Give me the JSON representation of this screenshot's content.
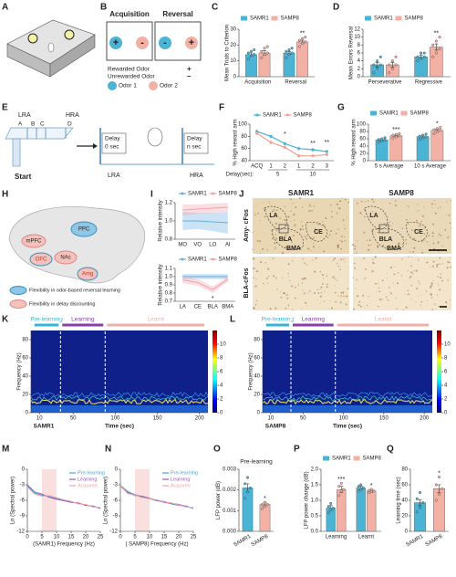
{
  "panel_labels": [
    "A",
    "B",
    "C",
    "D",
    "E",
    "F",
    "G",
    "H",
    "I",
    "J",
    "K",
    "L",
    "M",
    "N",
    "O",
    "P",
    "Q"
  ],
  "panel_b": {
    "headers": [
      "Acquisition",
      "Reversal"
    ],
    "signs": [
      "+",
      "-",
      "-",
      "+"
    ],
    "legend": [
      "Rewarded Odor",
      "Unrewarded Odor"
    ],
    "legend_signs": [
      "+",
      "–"
    ],
    "odors": [
      "Odor 1",
      "Odor 2"
    ]
  },
  "panel_e": {
    "arms": [
      "LRA",
      "HRA"
    ],
    "points": [
      "A",
      "B",
      "C",
      "D"
    ],
    "start": "Start",
    "delays": [
      {
        "title": "Delay",
        "time": "0 sec",
        "arm": "LRA"
      },
      {
        "title": "Delay",
        "time": "n sec",
        "arm": "HRA"
      }
    ]
  },
  "panel_h": {
    "regions": [
      "PPC",
      "mPFC",
      "OFC",
      "NAc",
      "Amg"
    ],
    "legend": [
      "Flexibility in odor-based reversal learning",
      "Flexibility in delay discounting"
    ]
  },
  "panel_j": {
    "columns": [
      "SAMR1",
      "SAMP8"
    ],
    "rows": [
      "Amy- cFos",
      "BLA-cFos"
    ],
    "regions": [
      "LA",
      "BLA",
      "CE",
      "BMA"
    ]
  },
  "chart_data": [
    {
      "type": "bar",
      "ylabel": "Mean Trials to Criterion",
      "categories": [
        "Acquisition",
        "Reversal"
      ],
      "ylim": [
        0,
        30
      ],
      "yticks": [
        0,
        10,
        20,
        30
      ],
      "series": [
        {
          "name": "SAMR1",
          "color": "#4bb3d3",
          "values": [
            14,
            15
          ],
          "errors": [
            1,
            1
          ],
          "points": [
            [
              11,
              13,
              14,
              15,
              16,
              17
            ],
            [
              12,
              14,
              15,
              16,
              17,
              18
            ]
          ]
        },
        {
          "name": "SAMP8",
          "color": "#f2b1a4",
          "values": [
            15,
            22
          ],
          "errors": [
            1.5,
            1
          ],
          "points": [
            [
              12,
              14,
              15,
              16,
              18,
              19
            ],
            [
              19,
              21,
              22,
              23,
              24,
              25
            ]
          ],
          "sig": [
            null,
            "**"
          ]
        }
      ]
    },
    {
      "type": "bar",
      "ylabel": "Mean Errors Reversal",
      "categories": [
        "Perseverative",
        "Regressive"
      ],
      "ylim": [
        0,
        12
      ],
      "yticks": [
        0,
        2,
        4,
        6,
        8,
        10,
        12
      ],
      "series": [
        {
          "name": "SAMR1",
          "color": "#4bb3d3",
          "values": [
            3,
            5
          ],
          "errors": [
            0.6,
            0.5
          ],
          "points": [
            [
              1,
              2,
              3,
              3,
              4,
              5
            ],
            [
              4,
              4.5,
              5,
              5,
              6,
              6
            ]
          ]
        },
        {
          "name": "SAMP8",
          "color": "#f2b1a4",
          "values": [
            3,
            7.5
          ],
          "errors": [
            0.6,
            0.8
          ],
          "points": [
            [
              1,
              2,
              3,
              3,
              4,
              5
            ],
            [
              5,
              6,
              7,
              8,
              9,
              10
            ]
          ],
          "sig": [
            null,
            "**"
          ]
        }
      ]
    },
    {
      "type": "line",
      "ylabel": "% High reward arm",
      "xlabel": "Delay(sec):",
      "categories": [
        "ACQ",
        "1",
        "2",
        "1",
        "2",
        "3"
      ],
      "groups": [
        "5",
        "10"
      ],
      "ylim": [
        40,
        100
      ],
      "yticks": [
        40,
        60,
        80,
        100
      ],
      "series": [
        {
          "name": "SAMR1",
          "color": "#4bb3d3",
          "values": [
            88,
            80,
            68,
            60,
            58,
            55
          ],
          "errors": [
            3,
            3,
            3,
            3,
            3,
            2
          ]
        },
        {
          "name": "SAMP8",
          "color": "#f2a093",
          "values": [
            85,
            70,
            62,
            48,
            48,
            50
          ],
          "errors": [
            3,
            3,
            3,
            3,
            2,
            2
          ],
          "sig": [
            null,
            null,
            "*",
            null,
            "**",
            "**"
          ]
        }
      ]
    },
    {
      "type": "bar",
      "ylabel": "% High reward arm",
      "categories": [
        "5 s Average",
        "10 s Average"
      ],
      "ylim": [
        0,
        100
      ],
      "yticks": [
        0,
        20,
        40,
        60,
        80,
        100
      ],
      "series": [
        {
          "name": "SAMR1",
          "color": "#4bb3d3",
          "values": [
            57,
            66
          ],
          "errors": [
            3,
            3
          ],
          "points": [
            [
              50,
              54,
              57,
              58,
              60,
              63
            ],
            [
              58,
              62,
              65,
              67,
              70,
              73
            ]
          ]
        },
        {
          "name": "SAMP8",
          "color": "#f2b1a4",
          "values": [
            68,
            83
          ],
          "errors": [
            2,
            3
          ],
          "points": [
            [
              62,
              65,
              68,
              70,
              72,
              74
            ],
            [
              74,
              79,
              83,
              85,
              88,
              91
            ]
          ],
          "sig": [
            "***",
            "*"
          ]
        }
      ]
    },
    {
      "type": "band",
      "ylabel": "Relative intensity",
      "categories": [
        "MO",
        "VO",
        "LO",
        "AI"
      ],
      "ylim": [
        0.8,
        1.2
      ],
      "yticks": [
        0.8,
        {
          "value": 1,
          "label": "1.0"
        },
        1.2
      ],
      "series": [
        {
          "name": "SAMR1",
          "color": "#6aaee0",
          "values": [
            1.0,
            1.0,
            0.99,
            0.98
          ],
          "errors": [
            0.1,
            0.09,
            0.1,
            0.12
          ]
        },
        {
          "name": "SAMP8",
          "color": "#f2a0a8",
          "values": [
            1.12,
            1.13,
            1.14,
            1.15
          ],
          "errors": [
            0.06,
            0.05,
            0.05,
            0.05
          ]
        }
      ]
    },
    {
      "type": "band",
      "ylabel": "Relative intensity",
      "categories": [
        "LA",
        "CE",
        "BLA",
        "BMA"
      ],
      "ylim": [
        0.7,
        1.1
      ],
      "yticks": [
        0.7,
        0.8,
        0.9,
        {
          "value": 1,
          "label": "1.0"
        },
        1.1
      ],
      "series": [
        {
          "name": "SAMR1",
          "color": "#6aaee0",
          "values": [
            1.0,
            1.0,
            1.0,
            1.0
          ],
          "errors": [
            0.03,
            0.03,
            0.03,
            0.03
          ]
        },
        {
          "name": "SAMP8",
          "color": "#f2a0a8",
          "values": [
            0.96,
            0.93,
            0.84,
            0.97
          ],
          "errors": [
            0.04,
            0.04,
            0.04,
            0.03
          ],
          "sig": [
            null,
            null,
            "*",
            null
          ]
        }
      ]
    },
    {
      "type": "spectrogram",
      "ylabel": "Frequency (Hz)",
      "xlabel": "Time (sec)",
      "subject": "SAMR1",
      "xlim": [
        0,
        210
      ],
      "xticks": [
        10,
        50,
        100,
        150,
        200
      ],
      "ylim": [
        0,
        90
      ],
      "yticks": [
        0,
        20,
        40,
        60,
        80
      ],
      "clim": [
        0,
        12
      ],
      "cticks": [
        0,
        2,
        4,
        6,
        8,
        10
      ],
      "phases": [
        {
          "name": "Pre-learning",
          "color": "#35b6d8",
          "span": [
            2,
            35
          ]
        },
        {
          "name": "Learning",
          "color": "#8a3fa8",
          "span": [
            35,
            88
          ]
        },
        {
          "name": "Learnt",
          "color": "#f0b0a6",
          "span": [
            88,
            208
          ]
        }
      ]
    },
    {
      "type": "spectrogram",
      "ylabel": "Frequency (Hz)",
      "xlabel": "Time (sec)",
      "subject": "SAMP8",
      "xlim": [
        0,
        210
      ],
      "xticks": [
        10,
        50,
        100,
        150,
        200
      ],
      "ylim": [
        0,
        90
      ],
      "yticks": [
        0,
        20,
        40,
        60,
        80
      ],
      "clim": [
        0,
        12
      ],
      "cticks": [
        0,
        2,
        4,
        6,
        8,
        10
      ],
      "phases": [
        {
          "name": "Pre-learning",
          "color": "#35b6d8",
          "span": [
            2,
            35
          ]
        },
        {
          "name": "Learning",
          "color": "#8a3fa8",
          "span": [
            35,
            90
          ]
        },
        {
          "name": "Learnt",
          "color": "#f0b0a6",
          "span": [
            90,
            208
          ]
        }
      ]
    },
    {
      "type": "spectrum",
      "ylabel": "Ln (Spectral power)",
      "xlabel": "(SAMR1) Frequency (Hz)",
      "xlim": [
        0,
        25
      ],
      "xticks": [
        0,
        5,
        10,
        15,
        20,
        25
      ],
      "ylim": [
        -12,
        0
      ],
      "yticks": [
        -12,
        -9,
        -6,
        -3,
        0
      ],
      "highlight": [
        5,
        10
      ],
      "x": [
        0,
        2.5,
        5,
        7.5,
        10,
        12.5,
        15,
        17.5,
        20,
        22.5,
        25
      ],
      "series": [
        {
          "name": "Pre-learning",
          "color": "#3fa7d6",
          "values": [
            -3.2,
            -4.6,
            -5.0,
            -5.3,
            -5.6,
            -6.0,
            -6.3,
            -6.6,
            -6.9,
            -7.2,
            -7.5
          ]
        },
        {
          "name": "Learning",
          "color": "#9b59b6",
          "values": [
            -3.0,
            -4.4,
            -4.8,
            -5.4,
            -5.8,
            -6.1,
            -6.4,
            -6.5,
            -7.0,
            -7.1,
            -7.6
          ]
        },
        {
          "name": "Acquired",
          "color": "#f4a7a0",
          "values": [
            -3.4,
            -4.8,
            -5.2,
            -5.1,
            -5.5,
            -5.9,
            -6.2,
            -6.7,
            -6.8,
            -7.3,
            -7.4
          ]
        }
      ]
    },
    {
      "type": "spectrum",
      "ylabel": "Ln (Spectral power)",
      "xlabel": "( SAMP8) Frequency (Hz)",
      "xlim": [
        0,
        25
      ],
      "xticks": [
        0,
        5,
        10,
        15,
        20,
        25
      ],
      "ylim": [
        -12,
        0
      ],
      "yticks": [
        -12,
        -9,
        -6,
        -3,
        0
      ],
      "highlight": [
        5,
        10
      ],
      "x": [
        0,
        2.5,
        5,
        7.5,
        10,
        12.5,
        15,
        17.5,
        20,
        22.5,
        25
      ],
      "series": [
        {
          "name": "Pre-learning",
          "color": "#3fa7d6",
          "values": [
            -3.1,
            -4.3,
            -4.9,
            -5.4,
            -5.7,
            -6.1,
            -6.2,
            -6.7,
            -7.0,
            -7.1,
            -7.6
          ]
        },
        {
          "name": "Learning",
          "color": "#9b59b6",
          "values": [
            -3.3,
            -4.5,
            -5.1,
            -5.2,
            -5.6,
            -6.0,
            -6.4,
            -6.6,
            -6.8,
            -7.2,
            -7.5
          ]
        },
        {
          "name": "Acquired",
          "color": "#f4a7a0",
          "values": [
            -3.2,
            -4.7,
            -5.0,
            -5.5,
            -5.7,
            -5.9,
            -6.3,
            -6.5,
            -6.9,
            -7.3,
            -7.4
          ]
        }
      ]
    },
    {
      "type": "bar",
      "title": "Pre-learning",
      "ylabel": "LFP power (dB)",
      "categories": [
        "SAMR1",
        "SAMP8"
      ],
      "ylim": [
        0,
        0.003
      ],
      "yticks": [
        {
          "value": 0,
          "label": "0.000"
        },
        0.001,
        0.002,
        0.003
      ],
      "series": [
        {
          "colors": [
            "#4bb3d3",
            "#f2b1a4"
          ],
          "values": [
            0.0021,
            0.0013
          ],
          "errors": [
            0.0002,
            0.0001
          ],
          "points": [
            [
              0.0016,
              0.0019,
              0.0021,
              0.0023,
              0.0026
            ],
            [
              0.0011,
              0.0012,
              0.0013,
              0.0013,
              0.0014
            ]
          ],
          "sig": [
            null,
            "*"
          ]
        }
      ]
    },
    {
      "type": "bar",
      "ylabel": "LFP power change (dB)",
      "categories": [
        "Learning",
        "Learnt"
      ],
      "ylim": [
        0,
        2
      ],
      "yticks": [
        {
          "value": 0,
          "label": "0.0"
        },
        0.5,
        {
          "value": 1,
          "label": "1.0"
        },
        1.5,
        {
          "value": 2,
          "label": "2.0"
        }
      ],
      "series": [
        {
          "name": "SAMR1",
          "color": "#4bb3d3",
          "values": [
            0.75,
            1.4
          ],
          "errors": [
            0.08,
            0.06
          ],
          "points": [
            [
              0.6,
              0.7,
              0.75,
              0.8,
              0.9
            ],
            [
              1.3,
              1.35,
              1.4,
              1.45,
              1.5
            ]
          ]
        },
        {
          "name": "SAMP8",
          "color": "#f2b1a4",
          "values": [
            1.35,
            1.3
          ],
          "errors": [
            0.1,
            0.04
          ],
          "points": [
            [
              1.15,
              1.3,
              1.35,
              1.45,
              1.55
            ],
            [
              1.25,
              1.28,
              1.3,
              1.32,
              1.35
            ]
          ],
          "sig": [
            "***",
            "*"
          ]
        }
      ]
    },
    {
      "type": "bar",
      "ylabel": "Learning time (sec)",
      "categories": [
        "SAMR1",
        "SAMP8"
      ],
      "ylim": [
        0,
        80
      ],
      "yticks": [
        0,
        20,
        40,
        60,
        80
      ],
      "series": [
        {
          "colors": [
            "#4bb3d3",
            "#f2b1a4"
          ],
          "values": [
            37,
            55
          ],
          "errors": [
            4,
            5
          ],
          "points": [
            [
              25,
              30,
              37,
              42,
              50
            ],
            [
              40,
              48,
              55,
              60,
              70
            ]
          ],
          "sig": [
            null,
            "*"
          ]
        }
      ]
    }
  ]
}
